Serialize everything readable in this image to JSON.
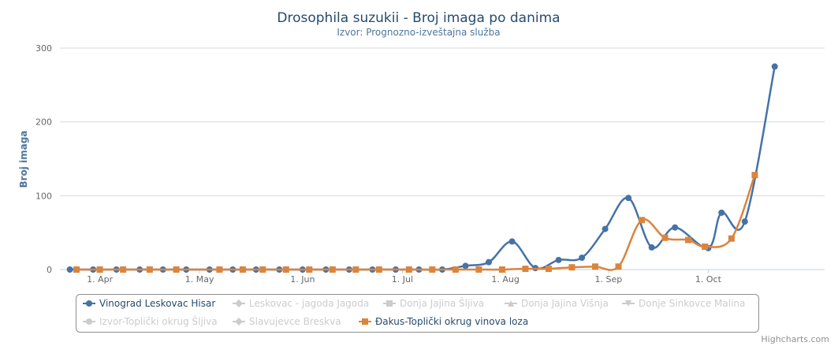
{
  "chart_data": {
    "type": "line",
    "title": "Drosophila suzukii - Broj imaga po danima",
    "subtitle": "Izvor: Prognozno-izveštajna služba",
    "ylabel": "Broj imaga",
    "xlabel": "",
    "ylim": [
      0,
      300
    ],
    "yticks": [
      0,
      100,
      200,
      300
    ],
    "xlim": [
      "2020-03-20",
      "2020-11-05"
    ],
    "xticks": [
      {
        "date": "2020-04-01",
        "label": "1. Apr"
      },
      {
        "date": "2020-05-01",
        "label": "1. May"
      },
      {
        "date": "2020-06-01",
        "label": "1. Jun"
      },
      {
        "date": "2020-07-01",
        "label": "1. Jul"
      },
      {
        "date": "2020-08-01",
        "label": "1. Aug"
      },
      {
        "date": "2020-09-01",
        "label": "1. Sep"
      },
      {
        "date": "2020-10-01",
        "label": "1. Oct"
      }
    ],
    "grid": true,
    "legend_position": "bottom",
    "series": [
      {
        "name": "Vinograd Leskovac Hisar",
        "color": "#4572a7",
        "marker": "circle",
        "visible": true,
        "points": [
          [
            "2020-03-23",
            0
          ],
          [
            "2020-03-30",
            0
          ],
          [
            "2020-04-06",
            0
          ],
          [
            "2020-04-13",
            0
          ],
          [
            "2020-04-20",
            0
          ],
          [
            "2020-04-27",
            0
          ],
          [
            "2020-05-04",
            0
          ],
          [
            "2020-05-11",
            0
          ],
          [
            "2020-05-18",
            0
          ],
          [
            "2020-05-25",
            0
          ],
          [
            "2020-06-01",
            0
          ],
          [
            "2020-06-08",
            0
          ],
          [
            "2020-06-15",
            0
          ],
          [
            "2020-06-22",
            0
          ],
          [
            "2020-06-29",
            0
          ],
          [
            "2020-07-06",
            0
          ],
          [
            "2020-07-13",
            0
          ],
          [
            "2020-07-20",
            5
          ],
          [
            "2020-07-27",
            10
          ],
          [
            "2020-08-03",
            38
          ],
          [
            "2020-08-10",
            2
          ],
          [
            "2020-08-17",
            13
          ],
          [
            "2020-08-24",
            16
          ],
          [
            "2020-08-31",
            55
          ],
          [
            "2020-09-07",
            97
          ],
          [
            "2020-09-14",
            30
          ],
          [
            "2020-09-21",
            57
          ],
          [
            "2020-10-01",
            29
          ],
          [
            "2020-10-05",
            77
          ],
          [
            "2020-10-12",
            65
          ],
          [
            "2020-10-21",
            275
          ]
        ]
      },
      {
        "name": "Leskovac - jagoda Jagoda",
        "color": "#cccccc",
        "marker": "diamond",
        "visible": false,
        "points": []
      },
      {
        "name": "Donja Jajina Šljiva",
        "color": "#cccccc",
        "marker": "square",
        "visible": false,
        "points": []
      },
      {
        "name": "Donja Jajina Višnja",
        "color": "#cccccc",
        "marker": "triangle",
        "visible": false,
        "points": []
      },
      {
        "name": "Donje Sinkovce Malina",
        "color": "#cccccc",
        "marker": "triangle-down",
        "visible": false,
        "points": []
      },
      {
        "name": "Izvor-Toplički okrug Šljiva",
        "color": "#cccccc",
        "marker": "circle",
        "visible": false,
        "points": []
      },
      {
        "name": "Slavujevce Breskva",
        "color": "#cccccc",
        "marker": "diamond",
        "visible": false,
        "points": []
      },
      {
        "name": "Đakus-Toplički okrug vinova loza",
        "color": "#db843d",
        "marker": "square",
        "visible": true,
        "points": [
          [
            "2020-03-25",
            0
          ],
          [
            "2020-04-01",
            0
          ],
          [
            "2020-04-08",
            0
          ],
          [
            "2020-04-16",
            0
          ],
          [
            "2020-04-24",
            0
          ],
          [
            "2020-05-07",
            0
          ],
          [
            "2020-05-14",
            0
          ],
          [
            "2020-05-20",
            0
          ],
          [
            "2020-05-27",
            0
          ],
          [
            "2020-06-03",
            0
          ],
          [
            "2020-06-10",
            0
          ],
          [
            "2020-06-17",
            0
          ],
          [
            "2020-06-24",
            0
          ],
          [
            "2020-07-03",
            0
          ],
          [
            "2020-07-10",
            0
          ],
          [
            "2020-07-17",
            0
          ],
          [
            "2020-07-24",
            0
          ],
          [
            "2020-07-31",
            0
          ],
          [
            "2020-08-07",
            1
          ],
          [
            "2020-08-14",
            1
          ],
          [
            "2020-08-21",
            3
          ],
          [
            "2020-08-28",
            4
          ],
          [
            "2020-09-04",
            4
          ],
          [
            "2020-09-11",
            67
          ],
          [
            "2020-09-18",
            43
          ],
          [
            "2020-09-25",
            40
          ],
          [
            "2020-09-30",
            31
          ],
          [
            "2020-10-08",
            42
          ],
          [
            "2020-10-15",
            128
          ]
        ]
      }
    ]
  },
  "credits": "Highcharts.com"
}
